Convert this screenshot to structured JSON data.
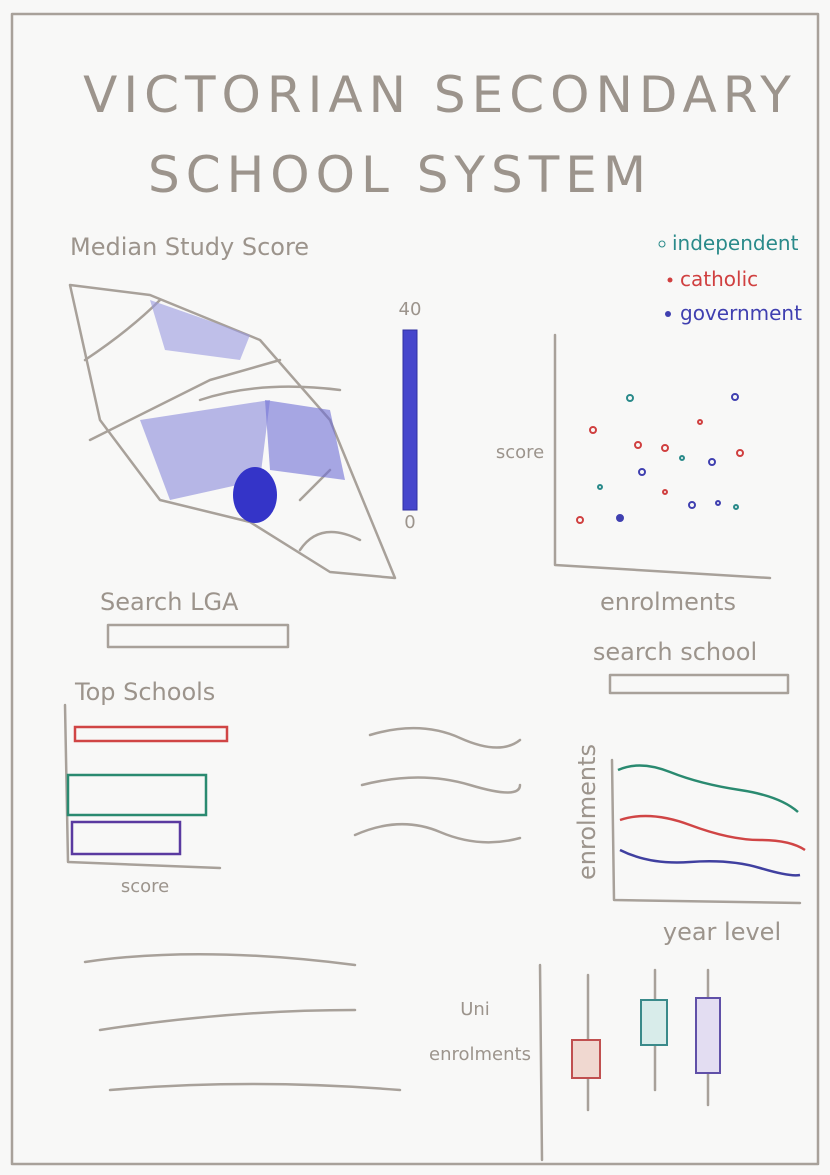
{
  "header": {
    "title_lines": [
      "VICTORIAN SECONDARY",
      "SCHOOL SYSTEM"
    ]
  },
  "map": {
    "title": "Median Study Score",
    "scale_max": "40",
    "scale_min": "0",
    "search_label": "Search LGA"
  },
  "scatter": {
    "legend": [
      "independent",
      "catholic",
      "government"
    ],
    "y_label": "score",
    "x_label": "enrolments",
    "search_label": "search school"
  },
  "top_schools": {
    "title": "Top Schools",
    "x_label": "score"
  },
  "line_chart": {
    "y_label": "enrolments",
    "x_label": "year level"
  },
  "box_chart": {
    "y_label_lines": [
      "Uni",
      "enrolments"
    ]
  }
}
